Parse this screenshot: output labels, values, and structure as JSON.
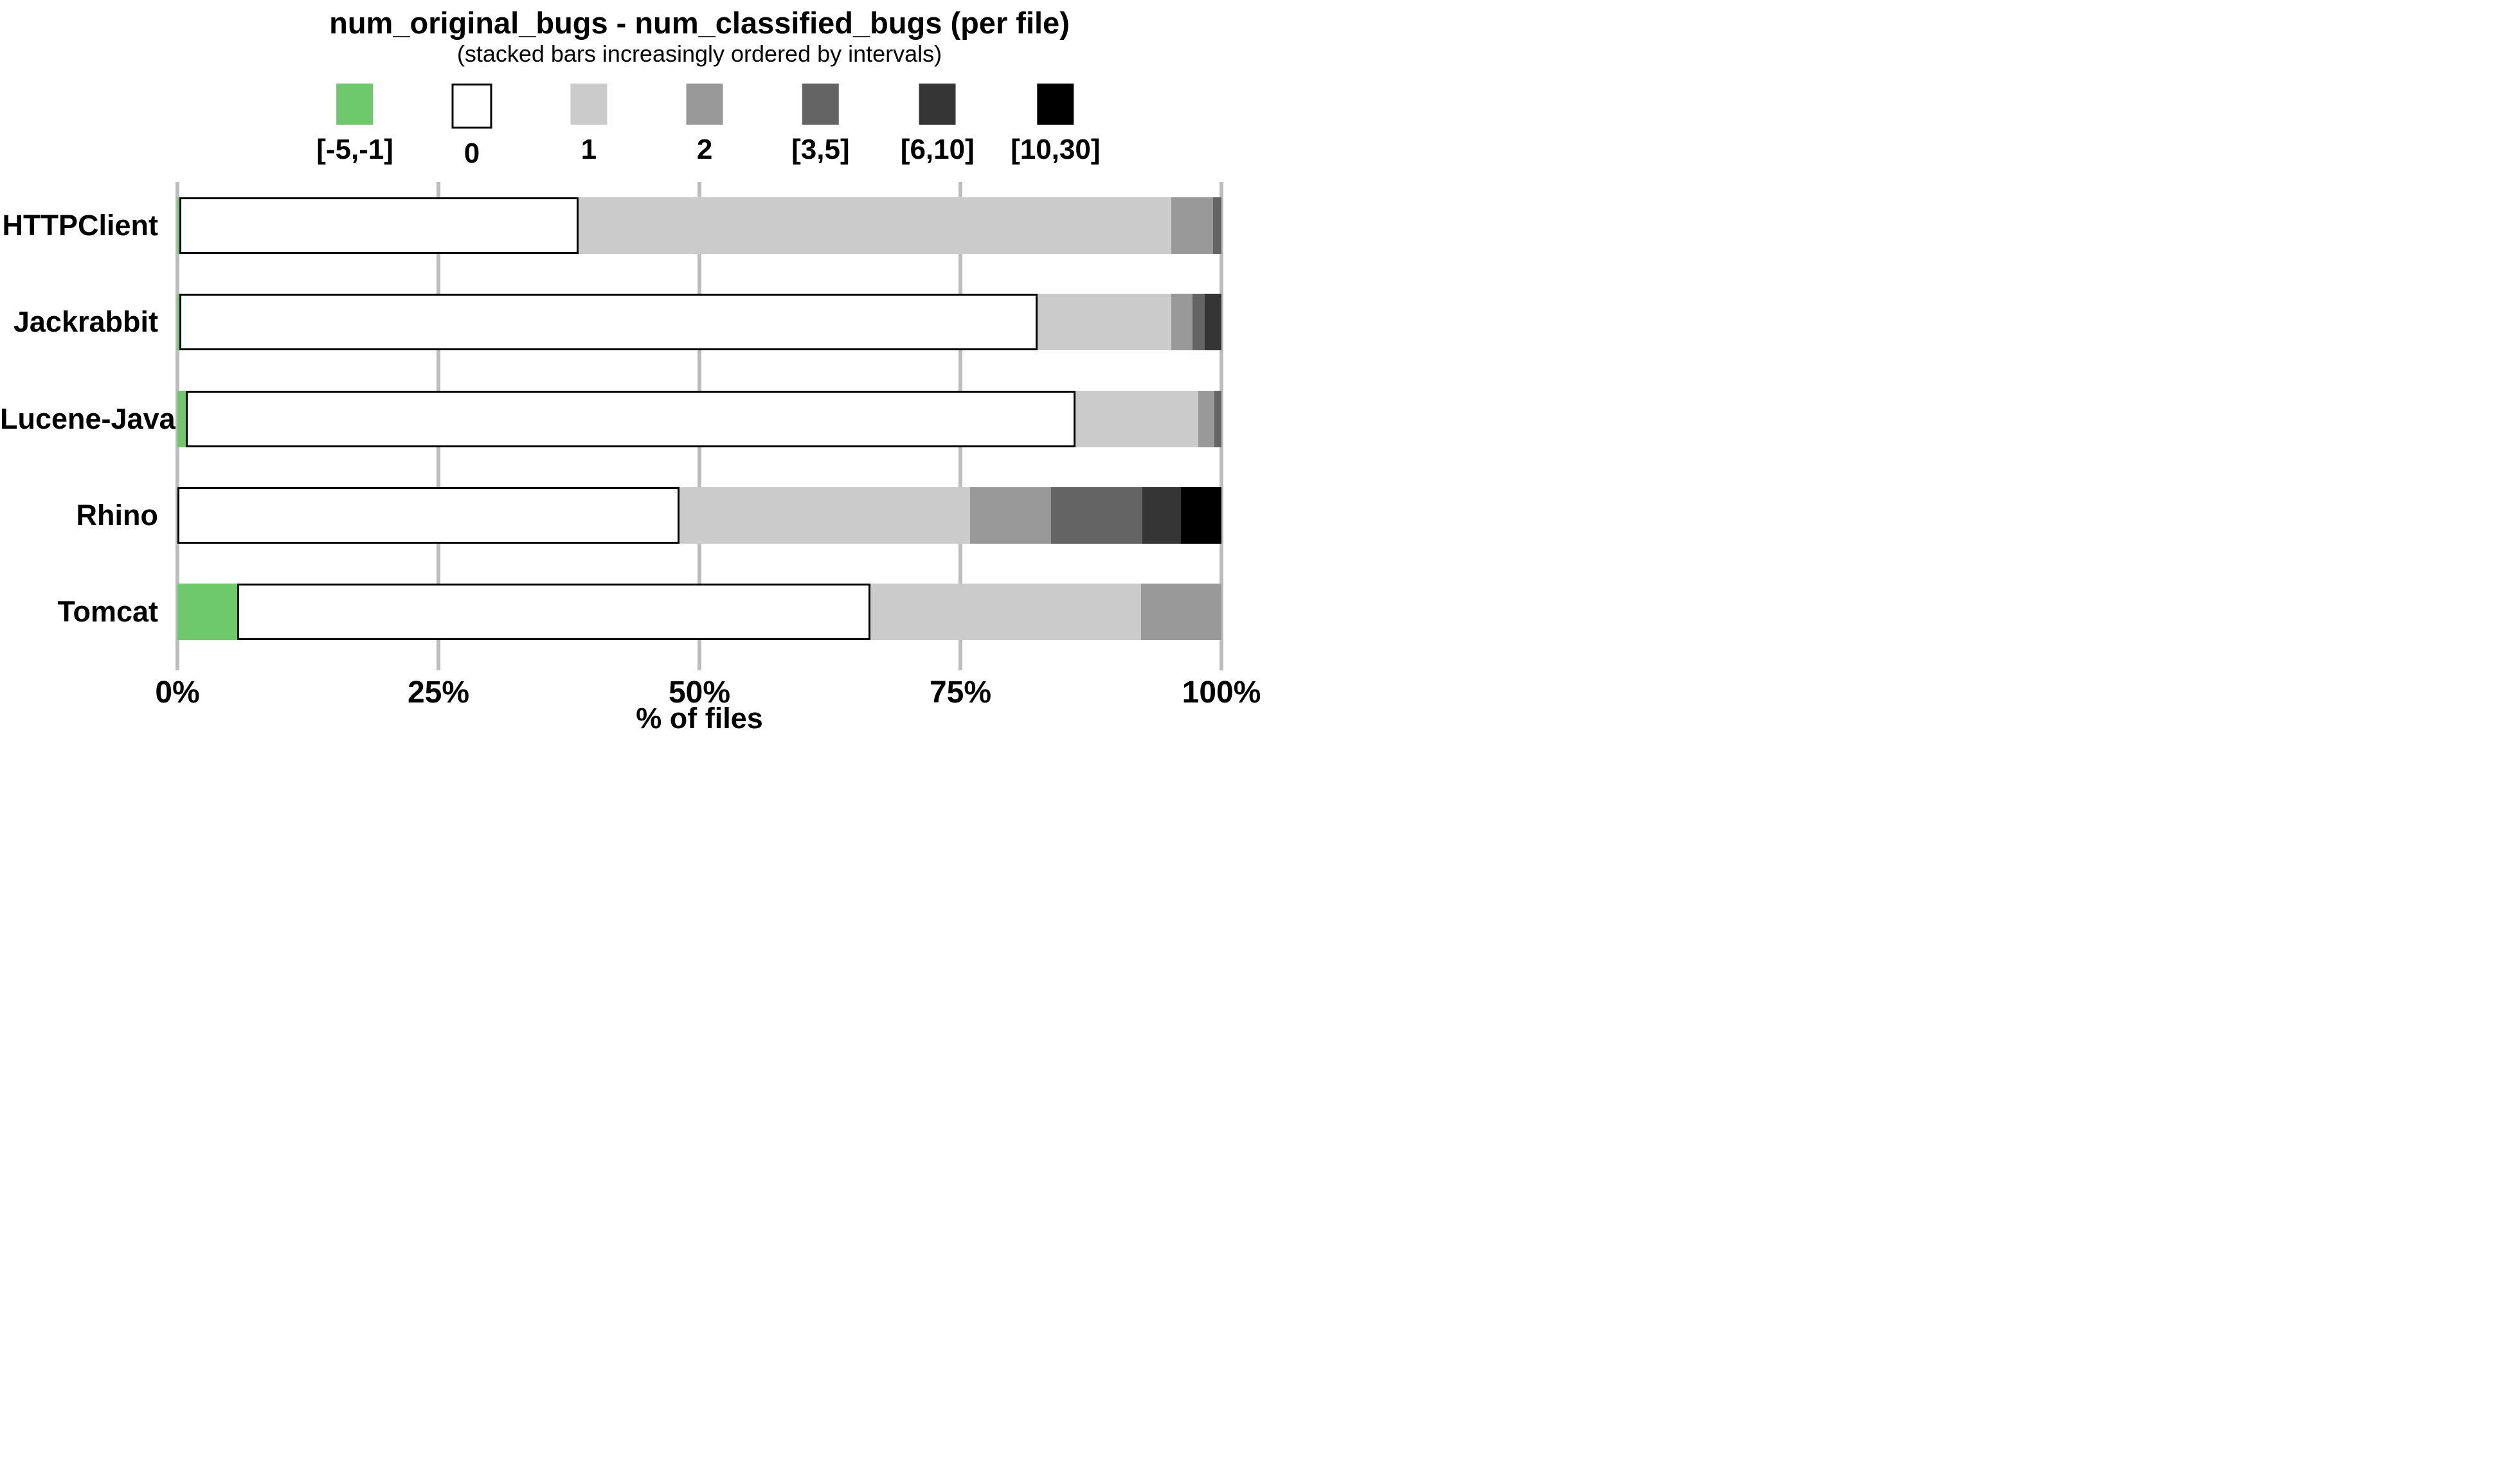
{
  "chart_data": {
    "type": "bar",
    "orientation": "horizontal-stacked",
    "title": "num_original_bugs - num_classified_bugs (per file)",
    "subtitle": "(stacked bars increasingly ordered by intervals)",
    "xlabel": "% of files",
    "x_ticks": [
      "0%",
      "25%",
      "50%",
      "75%",
      "100%"
    ],
    "xlim": [
      0,
      100
    ],
    "grid": true,
    "legend_position": "top",
    "categories": [
      "HTTPClient",
      "Jackrabbit",
      "Lucene-Java",
      "Rhino",
      "Tomcat"
    ],
    "series": [
      {
        "name": "[-5,-1]",
        "color": "#6DC96A",
        "border": "none",
        "values": [
          0.2,
          0.2,
          0.8,
          0.0,
          5.7
        ]
      },
      {
        "name": "0",
        "color": "#FFFFFF",
        "border": "#000000",
        "values": [
          38.2,
          82.2,
          85.2,
          48.1,
          60.7
        ]
      },
      {
        "name": "1",
        "color": "#CBCBCB",
        "border": "none",
        "values": [
          56.8,
          12.8,
          11.8,
          27.8,
          25.9
        ]
      },
      {
        "name": "2",
        "color": "#999999",
        "border": "none",
        "values": [
          4.0,
          2.0,
          1.5,
          7.8,
          7.7
        ]
      },
      {
        "name": "[3,5]",
        "color": "#646464",
        "border": "none",
        "values": [
          0.8,
          1.2,
          0.7,
          8.7,
          0.0
        ]
      },
      {
        "name": "[6,10]",
        "color": "#353535",
        "border": "none",
        "values": [
          0.0,
          1.6,
          0.0,
          3.7,
          0.0
        ]
      },
      {
        "name": "[10,30]",
        "color": "#000000",
        "border": "none",
        "values": [
          0.0,
          0.0,
          0.0,
          3.9,
          0.0
        ]
      }
    ],
    "colors": {
      "gridline": "#BDBDBD",
      "background": "#FFFFFF",
      "text": "#000000"
    }
  }
}
